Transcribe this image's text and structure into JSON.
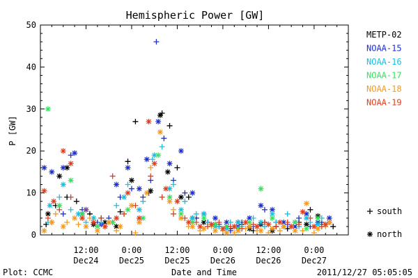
{
  "chart_data": {
    "type": "scatter",
    "title": "Hemispheric Power [GW]",
    "ylabel": "P [GW]",
    "xlabel": "Date and Time",
    "ylim": [
      0,
      50
    ],
    "yticks": [
      0,
      10,
      20,
      30,
      40,
      50
    ],
    "xlim": [
      0,
      81
    ],
    "xticks": [
      {
        "x": 12,
        "line1": "12:00",
        "line2": "Dec24"
      },
      {
        "x": 24,
        "line1": "0:00",
        "line2": "Dec25"
      },
      {
        "x": 36,
        "line1": "12:00",
        "line2": "Dec25"
      },
      {
        "x": 48,
        "line1": "0:00",
        "line2": "Dec26"
      },
      {
        "x": 60,
        "line1": "12:00",
        "line2": "Dec26"
      },
      {
        "x": 72,
        "line1": "0:00",
        "line2": "Dec27"
      }
    ],
    "x_unit_note": "x = hours since 2011-12-23 00:00",
    "legend": {
      "series_labels": [
        "METP-02",
        "NOAA-15",
        "NOAA-16",
        "NOAA-17",
        "NOAA-18",
        "NOAA-19"
      ],
      "markers": [
        {
          "symbol": "+",
          "label": "south"
        },
        {
          "symbol": "*",
          "label": "north"
        }
      ],
      "placement": "right"
    },
    "colors": {
      "METP-02": "#000000",
      "NOAA-15": "#1c2ed2",
      "NOAA-16": "#17bfe0",
      "NOAA-17": "#33e35f",
      "NOAA-18": "#f59a1c",
      "NOAA-19": "#e23c1a"
    },
    "series": [
      {
        "name": "METP-02",
        "marker": "+",
        "points": [
          [
            1.5,
            2.5
          ],
          [
            4,
            7
          ],
          [
            7,
            9
          ],
          [
            9.5,
            8
          ],
          [
            13,
            5
          ],
          [
            16,
            4
          ],
          [
            19,
            3
          ],
          [
            21,
            5.5
          ],
          [
            23,
            17.5
          ],
          [
            25,
            27
          ],
          [
            28.5,
            10
          ],
          [
            32,
            29
          ],
          [
            34,
            26
          ],
          [
            36,
            16
          ],
          [
            39,
            9
          ],
          [
            41,
            4
          ],
          [
            44,
            3
          ],
          [
            47,
            2
          ],
          [
            50,
            1.5
          ],
          [
            53,
            2.5
          ],
          [
            56,
            1
          ],
          [
            59,
            3
          ],
          [
            62,
            2
          ],
          [
            65,
            1.5
          ],
          [
            68,
            3
          ],
          [
            71,
            6
          ],
          [
            74,
            2.5
          ],
          [
            77,
            2
          ]
        ]
      },
      {
        "name": "METP-02",
        "marker": "*",
        "points": [
          [
            2,
            5
          ],
          [
            5,
            14
          ],
          [
            7,
            16
          ],
          [
            11,
            5
          ],
          [
            14,
            2.5
          ],
          [
            17,
            3
          ],
          [
            20,
            2
          ],
          [
            24,
            13
          ],
          [
            29,
            10.5
          ],
          [
            31.5,
            28.5
          ],
          [
            33.5,
            15
          ],
          [
            37,
            9
          ],
          [
            40,
            4
          ],
          [
            43,
            3
          ],
          [
            46,
            2.5
          ],
          [
            49,
            2
          ],
          [
            52,
            3
          ],
          [
            55,
            1.5
          ],
          [
            58,
            2.5
          ],
          [
            61,
            1
          ],
          [
            64,
            2
          ],
          [
            67,
            3
          ],
          [
            70,
            2.5
          ],
          [
            73,
            4.5
          ],
          [
            76,
            3
          ]
        ]
      },
      {
        "name": "NOAA-15",
        "marker": "+",
        "points": [
          [
            3,
            3
          ],
          [
            6,
            5
          ],
          [
            8,
            19
          ],
          [
            11,
            6
          ],
          [
            15,
            3
          ],
          [
            18,
            4
          ],
          [
            21,
            9
          ],
          [
            24,
            11
          ],
          [
            27,
            9
          ],
          [
            29,
            13
          ],
          [
            30.5,
            46
          ],
          [
            32.5,
            23
          ],
          [
            35,
            13
          ],
          [
            38,
            10
          ],
          [
            41,
            4
          ],
          [
            44,
            3
          ],
          [
            47,
            2.5
          ],
          [
            50,
            1
          ],
          [
            53,
            3
          ],
          [
            56,
            2
          ],
          [
            59,
            6
          ],
          [
            62,
            3
          ],
          [
            65,
            2.5
          ],
          [
            68,
            4
          ],
          [
            71,
            2
          ],
          [
            74,
            3
          ]
        ]
      },
      {
        "name": "NOAA-15",
        "marker": "*",
        "points": [
          [
            1,
            16
          ],
          [
            3,
            15
          ],
          [
            6,
            16
          ],
          [
            9,
            19.5
          ],
          [
            12,
            6
          ],
          [
            16,
            2.5
          ],
          [
            20,
            12
          ],
          [
            23,
            16
          ],
          [
            26,
            11
          ],
          [
            28,
            18
          ],
          [
            31,
            27
          ],
          [
            34,
            17
          ],
          [
            37,
            20
          ],
          [
            40,
            10
          ],
          [
            43,
            5
          ],
          [
            46,
            4
          ],
          [
            49,
            3
          ],
          [
            52,
            2
          ],
          [
            55,
            4
          ],
          [
            58,
            7
          ],
          [
            61,
            6
          ],
          [
            64,
            3
          ],
          [
            67,
            2
          ],
          [
            70,
            5
          ],
          [
            73,
            3
          ],
          [
            76,
            4
          ]
        ]
      },
      {
        "name": "NOAA-16",
        "marker": "+",
        "points": [
          [
            2,
            3
          ],
          [
            5,
            9
          ],
          [
            8,
            6
          ],
          [
            12,
            3
          ],
          [
            16,
            3
          ],
          [
            20,
            7
          ],
          [
            23,
            12
          ],
          [
            27,
            8
          ],
          [
            29.5,
            18
          ],
          [
            32,
            21
          ],
          [
            35,
            12
          ],
          [
            38,
            8
          ],
          [
            41,
            5
          ],
          [
            44,
            3
          ],
          [
            47,
            2
          ],
          [
            50,
            3
          ],
          [
            53,
            2
          ],
          [
            56,
            4
          ],
          [
            59,
            2
          ],
          [
            62,
            3
          ],
          [
            65,
            5
          ],
          [
            68,
            2
          ],
          [
            71,
            3
          ],
          [
            74,
            4
          ]
        ]
      },
      {
        "name": "NOAA-16",
        "marker": "*",
        "points": [
          [
            2.5,
            7
          ],
          [
            6,
            12
          ],
          [
            10,
            5
          ],
          [
            14,
            4
          ],
          [
            18,
            3
          ],
          [
            22,
            9
          ],
          [
            26,
            6
          ],
          [
            30,
            19
          ],
          [
            34,
            11
          ],
          [
            37,
            6
          ],
          [
            40,
            4
          ],
          [
            43,
            5
          ],
          [
            46,
            2
          ],
          [
            49,
            1.5
          ],
          [
            52,
            3
          ],
          [
            55,
            2
          ],
          [
            58,
            3
          ],
          [
            61,
            5
          ],
          [
            64,
            2
          ],
          [
            67,
            3
          ],
          [
            70,
            4
          ],
          [
            73,
            2.5
          ]
        ]
      },
      {
        "name": "NOAA-17",
        "marker": "*",
        "points": [
          [
            2,
            30
          ],
          [
            5,
            7
          ],
          [
            8,
            13
          ],
          [
            11,
            5
          ],
          [
            15,
            2
          ],
          [
            19,
            3
          ],
          [
            23,
            6
          ],
          [
            27,
            4
          ],
          [
            31,
            19
          ],
          [
            34,
            9
          ],
          [
            37,
            5
          ],
          [
            40,
            3
          ],
          [
            43,
            4
          ],
          [
            46,
            2.5
          ],
          [
            49,
            2
          ],
          [
            52,
            1.5
          ],
          [
            55,
            3
          ],
          [
            58,
            11
          ],
          [
            61,
            4
          ],
          [
            64,
            2
          ],
          [
            67,
            3
          ],
          [
            70,
            1.5
          ],
          [
            73,
            4
          ]
        ]
      },
      {
        "name": "NOAA-18",
        "marker": "*",
        "points": [
          [
            1,
            1
          ],
          [
            3,
            3
          ],
          [
            6,
            2
          ],
          [
            9,
            4
          ],
          [
            12,
            2
          ],
          [
            15,
            1
          ],
          [
            18,
            3
          ],
          [
            21,
            2
          ],
          [
            24,
            7
          ],
          [
            26,
            3
          ],
          [
            28,
            10
          ],
          [
            31.5,
            24.5
          ],
          [
            34,
            8
          ],
          [
            37,
            4
          ],
          [
            40,
            2
          ],
          [
            43,
            1.5
          ],
          [
            46,
            1
          ],
          [
            49,
            0.5
          ],
          [
            52,
            1
          ],
          [
            55,
            2
          ],
          [
            58,
            1
          ],
          [
            61,
            1.5
          ],
          [
            64,
            2
          ],
          [
            67,
            1
          ],
          [
            70,
            7.5
          ],
          [
            73,
            1.5
          ],
          [
            76,
            3
          ]
        ]
      },
      {
        "name": "NOAA-18",
        "marker": "+",
        "points": [
          [
            4,
            5
          ],
          [
            7,
            3
          ],
          [
            10,
            2.5
          ],
          [
            13,
            4
          ],
          [
            17,
            2
          ],
          [
            20,
            1
          ],
          [
            22,
            5
          ],
          [
            25,
            0.5
          ],
          [
            29,
            16
          ],
          [
            32,
            9
          ],
          [
            35,
            6
          ],
          [
            39,
            2
          ],
          [
            42,
            1
          ],
          [
            45,
            2
          ],
          [
            48,
            1
          ],
          [
            51,
            0.5
          ],
          [
            54,
            1.5
          ],
          [
            57,
            1
          ],
          [
            60,
            0.5
          ],
          [
            63,
            1
          ],
          [
            66,
            2
          ],
          [
            69,
            1
          ],
          [
            72,
            0.5
          ],
          [
            75,
            2
          ]
        ]
      },
      {
        "name": "NOAA-19",
        "marker": "*",
        "points": [
          [
            1,
            10.5
          ],
          [
            3.5,
            8
          ],
          [
            6,
            20
          ],
          [
            8,
            17
          ],
          [
            11,
            4
          ],
          [
            14,
            3
          ],
          [
            17,
            2
          ],
          [
            20,
            4
          ],
          [
            23,
            10
          ],
          [
            26,
            4
          ],
          [
            28.5,
            27
          ],
          [
            30,
            17
          ],
          [
            33,
            11
          ],
          [
            36,
            8
          ],
          [
            39,
            3
          ],
          [
            42,
            2
          ],
          [
            45,
            2.5
          ],
          [
            48,
            1.5
          ],
          [
            51,
            2
          ],
          [
            54,
            3
          ],
          [
            57,
            2
          ],
          [
            60,
            2.5
          ],
          [
            63,
            3
          ],
          [
            66,
            2
          ],
          [
            69,
            5.5
          ],
          [
            72,
            2
          ],
          [
            75,
            2.5
          ]
        ]
      },
      {
        "name": "NOAA-19",
        "marker": "+",
        "points": [
          [
            2,
            4
          ],
          [
            5,
            6
          ],
          [
            8,
            9
          ],
          [
            12,
            6
          ],
          [
            16,
            4
          ],
          [
            19,
            14
          ],
          [
            22,
            5
          ],
          [
            25,
            7
          ],
          [
            29,
            14
          ],
          [
            32,
            9
          ],
          [
            35,
            5
          ],
          [
            38,
            4
          ],
          [
            41,
            3
          ],
          [
            44,
            2
          ],
          [
            47,
            3
          ],
          [
            50,
            2
          ],
          [
            53,
            1.5
          ],
          [
            56,
            2.5
          ],
          [
            59,
            3
          ],
          [
            62,
            2
          ],
          [
            65,
            3
          ],
          [
            68,
            2.5
          ],
          [
            71,
            4
          ],
          [
            74,
            2
          ]
        ]
      }
    ]
  },
  "footer": {
    "left": "Plot: CCMC",
    "right": "2011/12/27 05:05:05"
  }
}
